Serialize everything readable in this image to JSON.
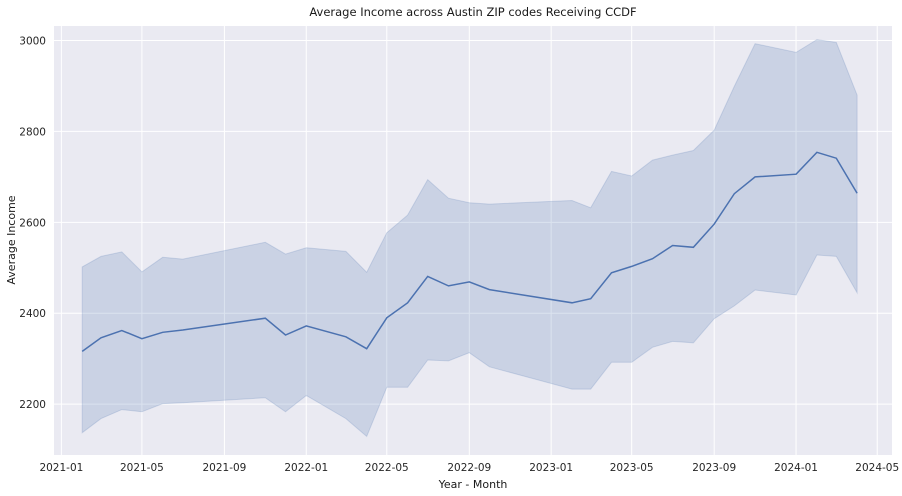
{
  "chart_data": {
    "type": "line",
    "title": "Average Income across Austin ZIP codes Receiving CCDF",
    "xlabel": "Year - Month",
    "ylabel": "Average Income",
    "xlim": [
      "2020-12-21",
      "2024-05-23"
    ],
    "ylim": [
      2088,
      3032
    ],
    "grid": true,
    "x_ticks": [
      "2021-01",
      "2021-05",
      "2021-09",
      "2022-01",
      "2022-05",
      "2022-09",
      "2023-01",
      "2023-05",
      "2023-09",
      "2024-01",
      "2024-05"
    ],
    "y_ticks": [
      2200,
      2400,
      2600,
      2800,
      3000
    ],
    "colors": {
      "line": "#4c72b0",
      "band": "#4c72b0",
      "background": "#eaeaf2",
      "grid": "#ffffff"
    },
    "series": [
      {
        "x": [
          "2021-02",
          "2021-03",
          "2021-04",
          "2021-05",
          "2021-06",
          "2021-07",
          "2021-11",
          "2021-12",
          "2022-01",
          "2022-03",
          "2022-04",
          "2022-05",
          "2022-06",
          "2022-07",
          "2022-08",
          "2022-09",
          "2022-10",
          "2023-02",
          "2023-03",
          "2023-04",
          "2023-05",
          "2023-06",
          "2023-07",
          "2023-08",
          "2023-09",
          "2023-10",
          "2023-11",
          "2024-01",
          "2024-02",
          "2024-03",
          "2024-04"
        ],
        "y": [
          2316,
          2346,
          2362,
          2344,
          2358,
          2363,
          2389,
          2352,
          2372,
          2348,
          2322,
          2390,
          2423,
          2481,
          2460,
          2469,
          2452,
          2423,
          2432,
          2489,
          2503,
          2520,
          2549,
          2545,
          2596,
          2663,
          2700,
          2706,
          2754,
          2741,
          2664
        ],
        "ci_low": [
          2137,
          2168,
          2188,
          2183,
          2201,
          2203,
          2214,
          2183,
          2219,
          2168,
          2129,
          2237,
          2237,
          2297,
          2295,
          2313,
          2282,
          2233,
          2233,
          2292,
          2292,
          2325,
          2338,
          2335,
          2388,
          2416,
          2451,
          2440,
          2528,
          2525,
          2445
        ],
        "ci_high": [
          2502,
          2525,
          2535,
          2491,
          2523,
          2519,
          2556,
          2530,
          2544,
          2536,
          2490,
          2577,
          2616,
          2694,
          2653,
          2643,
          2640,
          2648,
          2632,
          2712,
          2702,
          2737,
          2748,
          2758,
          2803,
          2899,
          2993,
          2974,
          3002,
          2996,
          2880
        ]
      }
    ]
  }
}
